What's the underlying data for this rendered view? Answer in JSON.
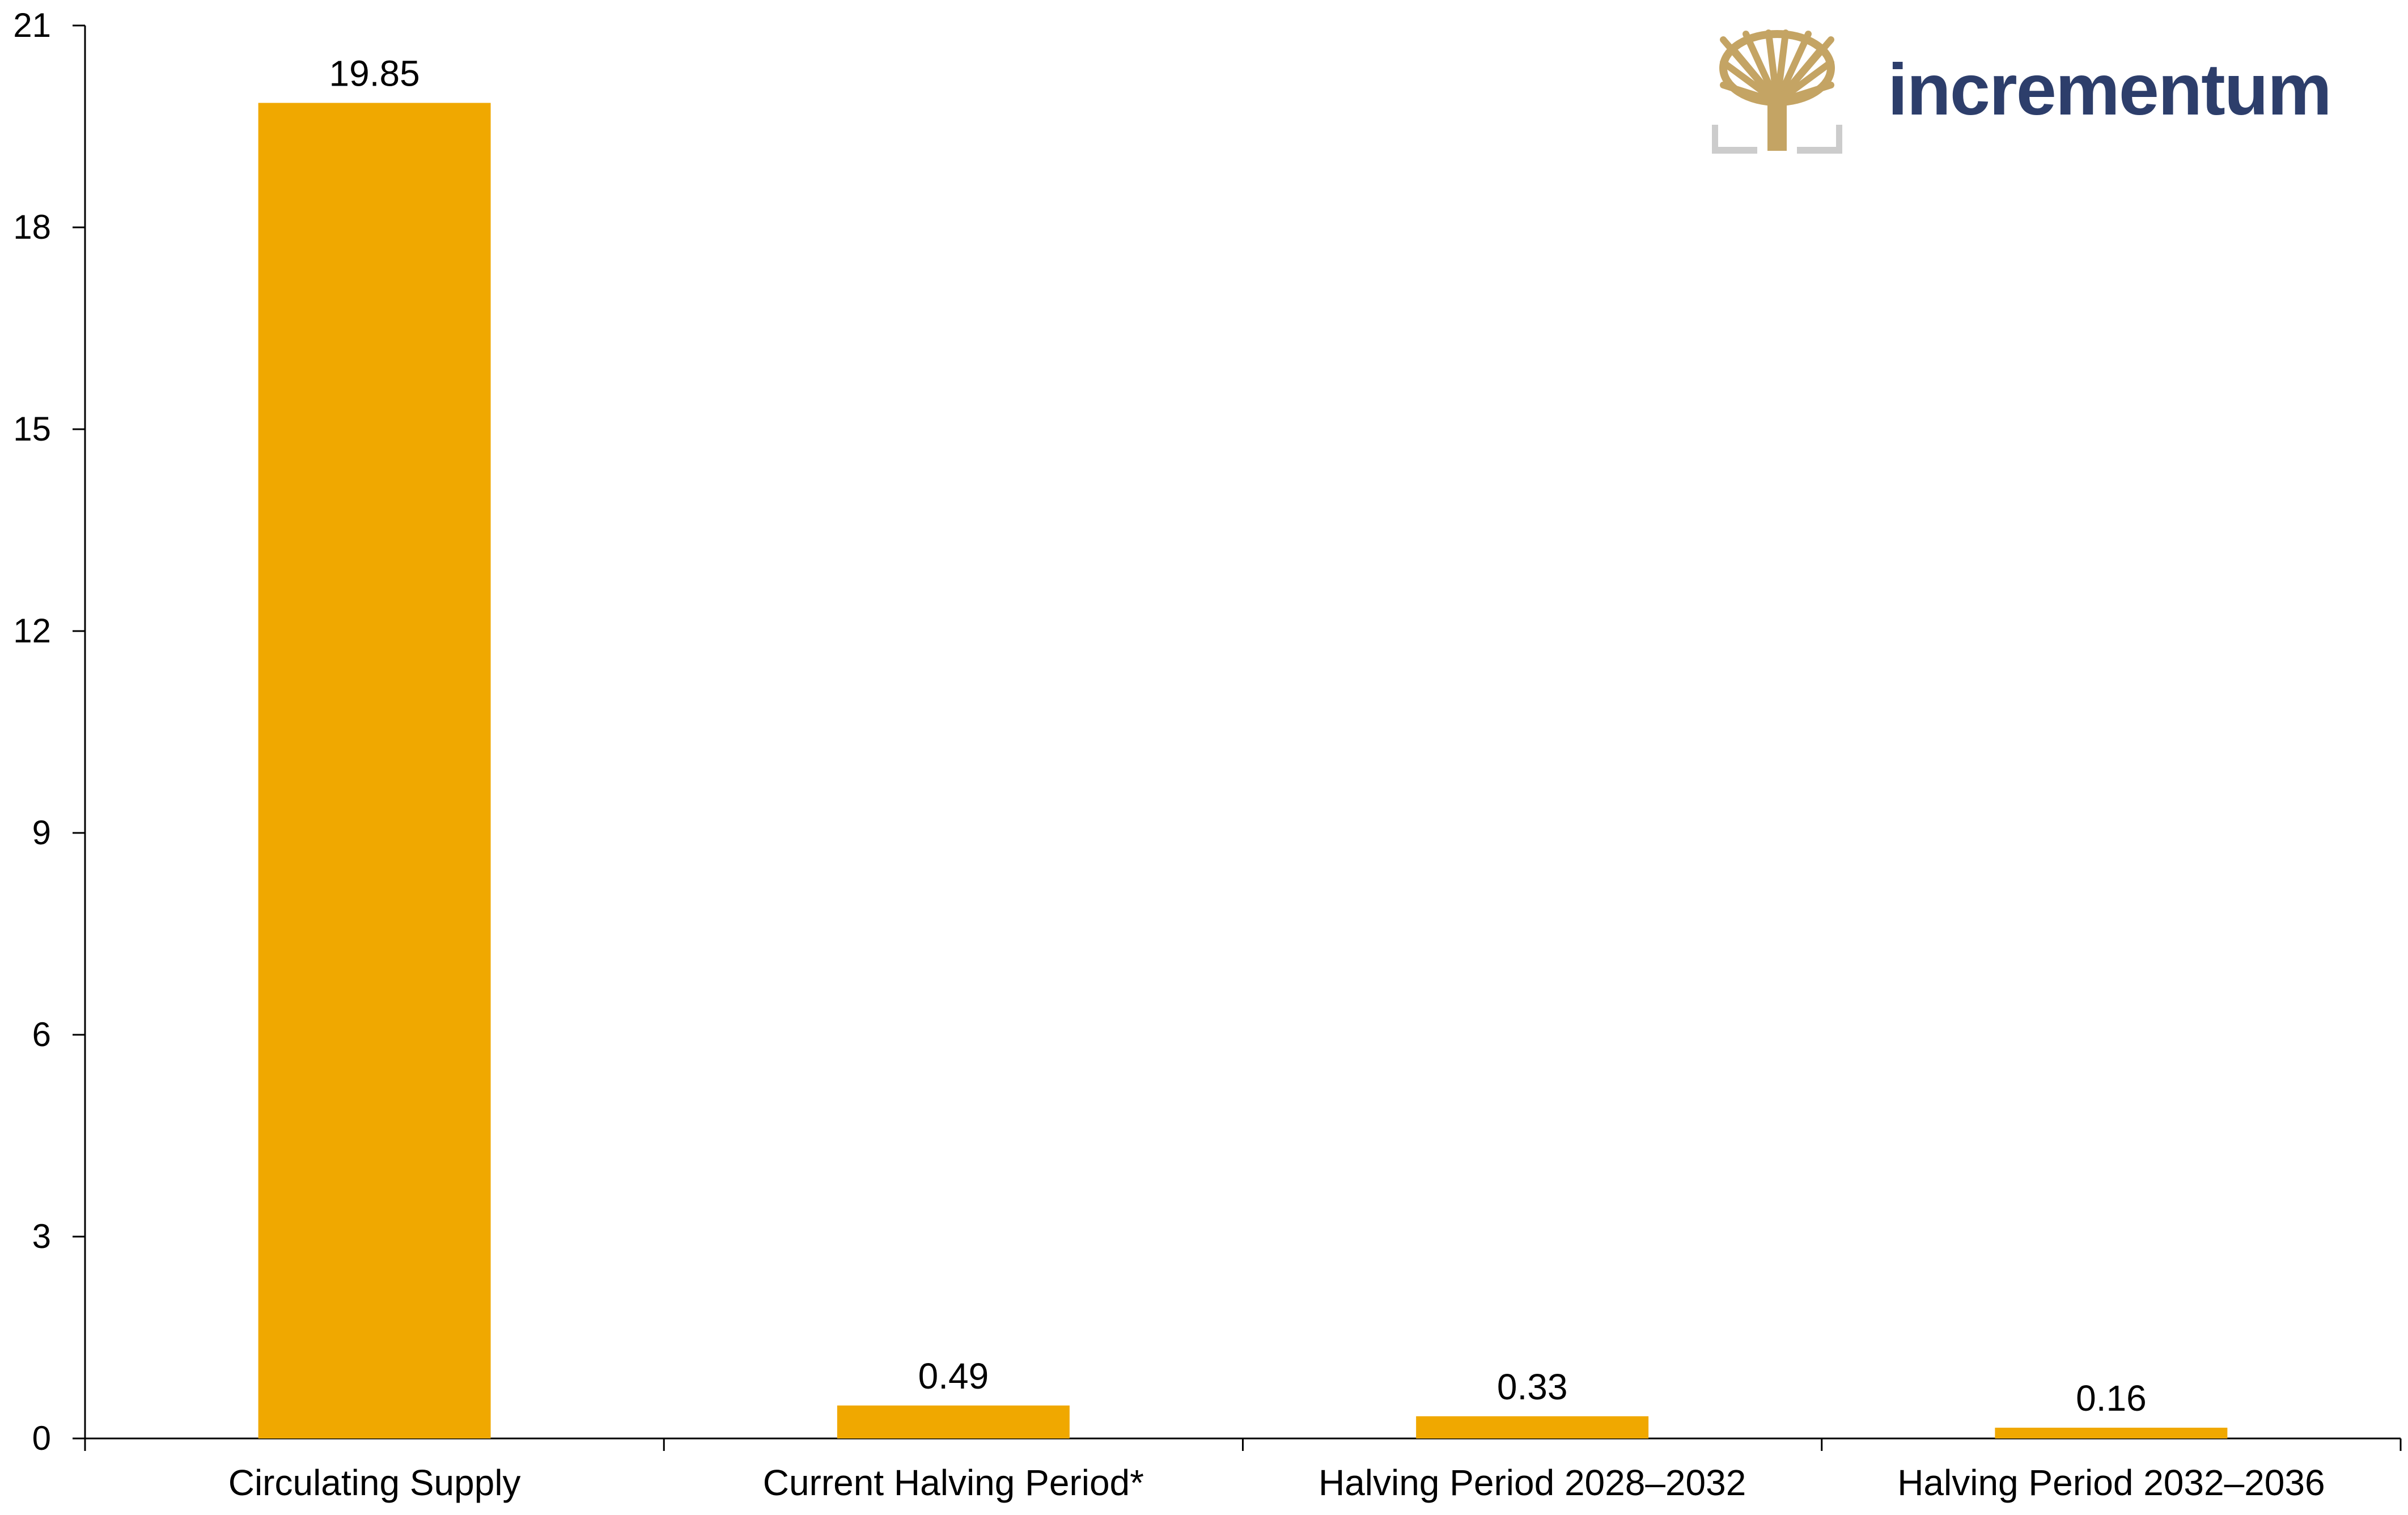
{
  "logo": {
    "text": "incrementum",
    "text_color": "#2d3e6b",
    "tree_color": "#c4a464",
    "frame_color": "#cccccc"
  },
  "chart_data": {
    "type": "bar",
    "categories": [
      "Circulating Supply",
      "Current Halving Period*",
      "Halving Period 2028–2032",
      "Halving Period 2032–2036"
    ],
    "values": [
      19.85,
      0.49,
      0.33,
      0.16
    ],
    "data_labels": [
      "19.85",
      "0.49",
      "0.33",
      "0.16"
    ],
    "ylim": [
      0,
      21
    ],
    "yticks": [
      0,
      3,
      6,
      9,
      12,
      15,
      18,
      21
    ],
    "bar_color": "#f0a800",
    "grid": false,
    "legend": "none"
  }
}
